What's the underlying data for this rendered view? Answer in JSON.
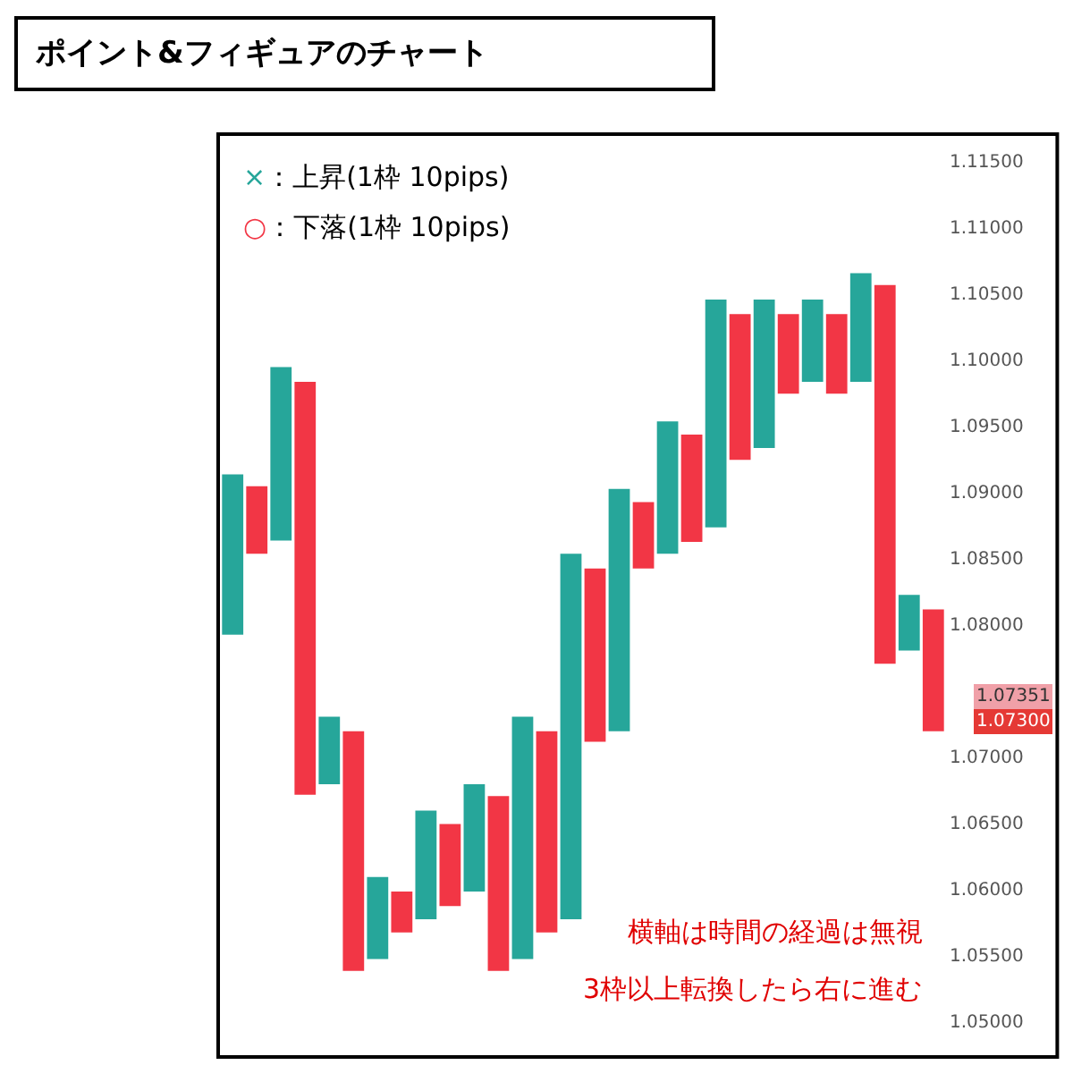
{
  "chart_data": {
    "type": "bar",
    "title": "ポイント&フィギュアのチャート",
    "categories": [
      null,
      null,
      null,
      null,
      null,
      null,
      null,
      null,
      null,
      null,
      null,
      null,
      null,
      null,
      null,
      null,
      null,
      null,
      null,
      null,
      null,
      null,
      null,
      null,
      null,
      null,
      null,
      null,
      null,
      null
    ],
    "values": [
      0.0121,
      0.0051,
      0.0131,
      0.0312,
      0.0051,
      0.0181,
      0.0062,
      0.0031,
      0.0082,
      0.0062,
      0.0081,
      0.0132,
      0.0183,
      0.0152,
      0.0276,
      0.0131,
      0.0183,
      0.005,
      0.01,
      0.0081,
      0.0172,
      0.011,
      0.0112,
      0.006,
      0.0062,
      0.006,
      0.0082,
      0.0286,
      0.0042,
      0.0092
    ],
    "base": [
      1.0792,
      1.0853,
      1.0863,
      1.0671,
      1.0679,
      1.0538,
      1.0547,
      1.0567,
      1.0577,
      1.0587,
      1.0598,
      1.0538,
      1.0547,
      1.0567,
      1.0577,
      1.0711,
      1.0719,
      1.0842,
      1.0853,
      1.0862,
      1.0873,
      1.0924,
      1.0933,
      1.0974,
      1.0983,
      1.0974,
      1.0983,
      1.077,
      1.078,
      1.0719
    ],
    "colors": [
      "#26a69a",
      "#f23645",
      "#26a69a",
      "#f23645",
      "#26a69a",
      "#f23645",
      "#26a69a",
      "#f23645",
      "#26a69a",
      "#f23645",
      "#26a69a",
      "#f23645",
      "#26a69a",
      "#f23645",
      "#26a69a",
      "#f23645",
      "#26a69a",
      "#f23645",
      "#26a69a",
      "#f23645",
      "#26a69a",
      "#f23645",
      "#26a69a",
      "#f23645",
      "#26a69a",
      "#f23645",
      "#26a69a",
      "#f23645",
      "#26a69a",
      "#f23645"
    ],
    "ylim": [
      1.0473,
      1.117
    ],
    "yticks": [
      {
        "value": 1.05,
        "label": "1.05000"
      },
      {
        "value": 1.055,
        "label": "1.05500"
      },
      {
        "value": 1.06,
        "label": "1.06000"
      },
      {
        "value": 1.065,
        "label": "1.06500"
      },
      {
        "value": 1.07,
        "label": "1.07000"
      },
      {
        "value": 1.08,
        "label": "1.08000"
      },
      {
        "value": 1.085,
        "label": "1.08500"
      },
      {
        "value": 1.09,
        "label": "1.09000"
      },
      {
        "value": 1.095,
        "label": "1.09500"
      },
      {
        "value": 1.1,
        "label": "1.10000"
      },
      {
        "value": 1.105,
        "label": "1.10500"
      },
      {
        "value": 1.11,
        "label": "1.11000"
      },
      {
        "value": 1.115,
        "label": "1.11500"
      }
    ],
    "annotations": [
      "×：上昇(1枠 10pips)",
      "○：下落(1枠 10pips)",
      "1.07351",
      "1.07300",
      "横軸は時間の経過は無視",
      "3枠以上転換したら右に進む"
    ],
    "tick_labels": "y"
  }
}
